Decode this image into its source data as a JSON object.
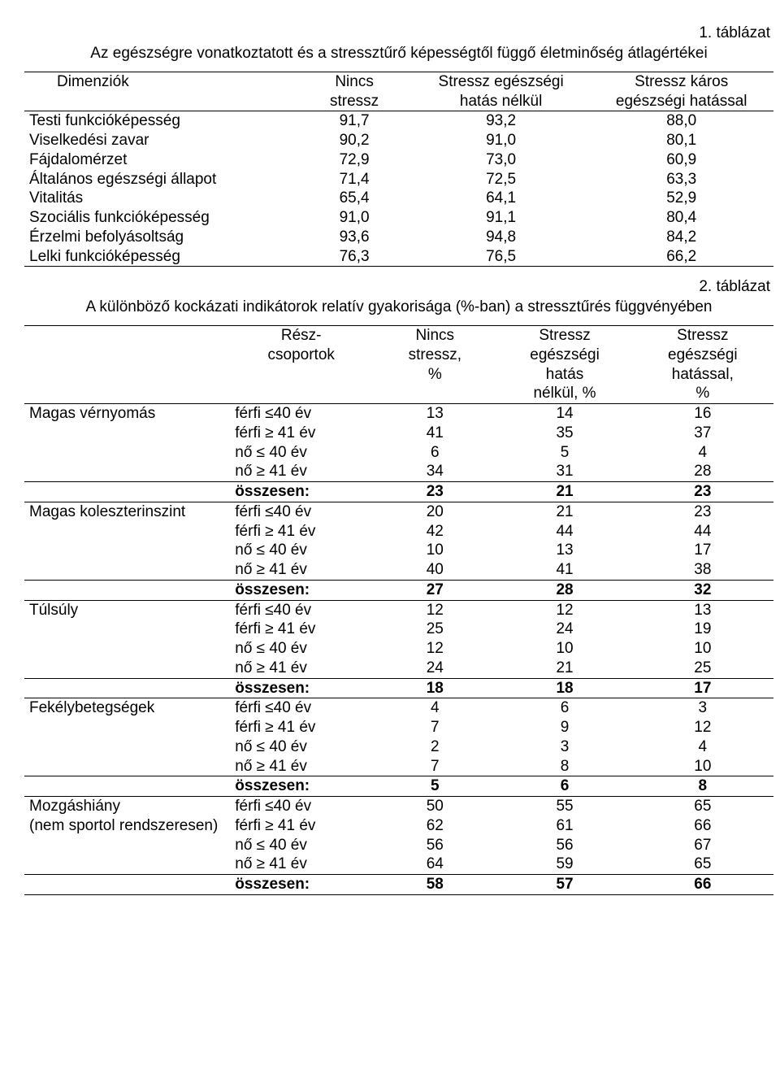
{
  "table1": {
    "label": "1. táblázat",
    "title": "Az egészségre vonatkoztatott és a stressztűrő képességtől függő életminőség átlagértékei",
    "headers": [
      "Dimenziók",
      "Nincs stressz",
      "Stressz egészségi hatás nélkül",
      "Stressz káros egészségi hatással"
    ],
    "rows": [
      [
        "Testi funkcióképesség",
        "91,7",
        "93,2",
        "88,0"
      ],
      [
        "Viselkedési zavar",
        "90,2",
        "91,0",
        "80,1"
      ],
      [
        "Fájdalomérzet",
        "72,9",
        "73,0",
        "60,9"
      ],
      [
        "Általános egészségi állapot",
        "71,4",
        "72,5",
        "63,3"
      ],
      [
        "Vitalitás",
        "65,4",
        "64,1",
        "52,9"
      ],
      [
        "Szociális funkcióképesség",
        "91,0",
        "91,1",
        "80,4"
      ],
      [
        "Érzelmi befolyásoltság",
        "93,6",
        "94,8",
        "84,2"
      ],
      [
        "Lelki funkcióképesség",
        "76,3",
        "76,5",
        "66,2"
      ]
    ]
  },
  "table2": {
    "label": "2. táblázat",
    "title": "A különböző kockázati indikátorok relatív gyakorisága (%-ban) a stressztűrés függvényében",
    "headers": [
      "",
      "Rész-csoportok",
      "Nincs stressz, %",
      "Stressz egészségi hatás nélkül, %",
      "Stressz egészségi hatással, %"
    ],
    "subgroups": [
      "férfi ≤40 év",
      "férfi ≥ 41 év",
      "nő ≤ 40 év",
      "nő ≥ 41 év"
    ],
    "total_label": "összesen:",
    "blocks": [
      {
        "name": "Magas vérnyomás",
        "rows": [
          [
            "13",
            "14",
            "16"
          ],
          [
            "41",
            "35",
            "37"
          ],
          [
            "6",
            "5",
            "4"
          ],
          [
            "34",
            "31",
            "28"
          ]
        ],
        "total": [
          "23",
          "21",
          "23"
        ]
      },
      {
        "name": "Magas koleszterinszint",
        "rows": [
          [
            "20",
            "21",
            "23"
          ],
          [
            "42",
            "44",
            "44"
          ],
          [
            "10",
            "13",
            "17"
          ],
          [
            "40",
            "41",
            "38"
          ]
        ],
        "total": [
          "27",
          "28",
          "32"
        ]
      },
      {
        "name": "Túlsúly",
        "rows": [
          [
            "12",
            "12",
            "13"
          ],
          [
            "25",
            "24",
            "19"
          ],
          [
            "12",
            "10",
            "10"
          ],
          [
            "24",
            "21",
            "25"
          ]
        ],
        "total": [
          "18",
          "18",
          "17"
        ]
      },
      {
        "name": "Fekélybetegségek",
        "rows": [
          [
            "4",
            "6",
            "3"
          ],
          [
            "7",
            "9",
            "12"
          ],
          [
            "2",
            "3",
            "4"
          ],
          [
            "7",
            "8",
            "10"
          ]
        ],
        "total": [
          "5",
          "6",
          "8"
        ]
      },
      {
        "name": "Mozgáshiány\n(nem sportol rendszeresen)",
        "rows": [
          [
            "50",
            "55",
            "65"
          ],
          [
            "62",
            "61",
            "66"
          ],
          [
            "56",
            "56",
            "67"
          ],
          [
            "64",
            "59",
            "65"
          ]
        ],
        "total": [
          "58",
          "57",
          "66"
        ]
      }
    ]
  }
}
